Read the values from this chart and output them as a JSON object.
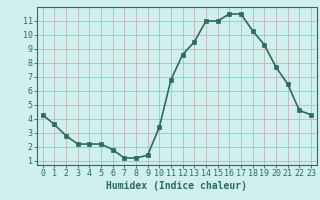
{
  "x": [
    0,
    1,
    2,
    3,
    4,
    5,
    6,
    7,
    8,
    9,
    10,
    11,
    12,
    13,
    14,
    15,
    16,
    17,
    18,
    19,
    20,
    21,
    22,
    23
  ],
  "y": [
    4.3,
    3.6,
    2.8,
    2.2,
    2.2,
    2.2,
    1.8,
    1.2,
    1.2,
    1.4,
    3.4,
    6.8,
    8.6,
    9.5,
    11.0,
    11.0,
    11.5,
    11.5,
    10.3,
    9.3,
    7.7,
    6.5,
    4.6,
    4.3
  ],
  "line_color": "#2d6b5e",
  "marker": "s",
  "markersize": 2.5,
  "bg_color": "#cff0ee",
  "grid_color": "#c4a8a8",
  "xlabel": "Humidex (Indice chaleur)",
  "xlim": [
    -0.5,
    23.5
  ],
  "ylim": [
    0.7,
    12.0
  ],
  "xticks": [
    0,
    1,
    2,
    3,
    4,
    5,
    6,
    7,
    8,
    9,
    10,
    11,
    12,
    13,
    14,
    15,
    16,
    17,
    18,
    19,
    20,
    21,
    22,
    23
  ],
  "yticks": [
    1,
    2,
    3,
    4,
    5,
    6,
    7,
    8,
    9,
    10,
    11
  ],
  "xlabel_fontsize": 7,
  "tick_fontsize": 6,
  "line_width": 1.2
}
